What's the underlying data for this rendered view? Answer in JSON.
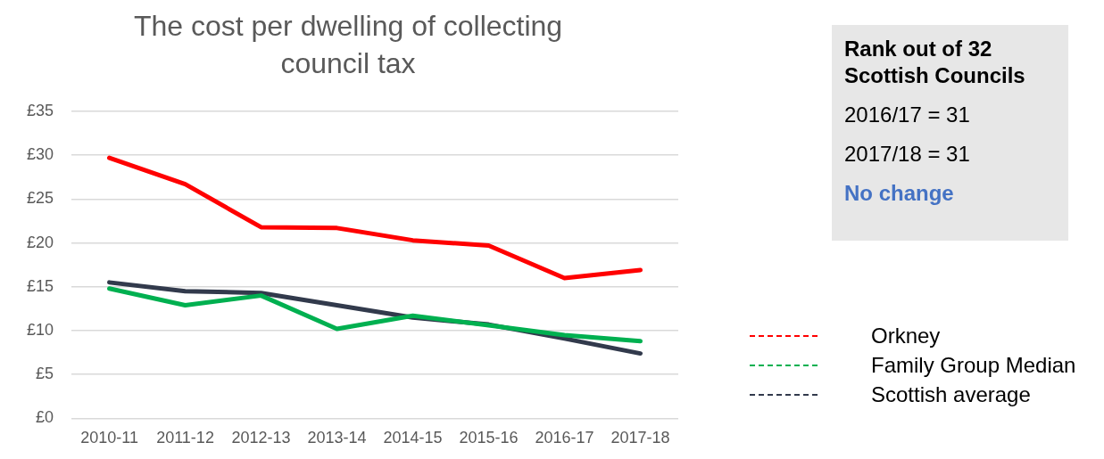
{
  "chart_data": {
    "type": "line",
    "title": "The cost per dwelling of collecting council tax",
    "categories": [
      "2010-11",
      "2011-12",
      "2012-13",
      "2013-14",
      "2014-15",
      "2015-16",
      "2016-17",
      "2017-18"
    ],
    "series": [
      {
        "name": "Orkney",
        "color": "#ff0000",
        "values": [
          29.7,
          26.7,
          21.8,
          21.7,
          20.3,
          19.7,
          16.0,
          16.9
        ]
      },
      {
        "name": "Family Group Median",
        "color": "#00b050",
        "values": [
          14.8,
          12.9,
          14.0,
          10.2,
          11.7,
          10.6,
          9.5,
          8.8
        ]
      },
      {
        "name": "Scottish average",
        "color": "#323a4c",
        "values": [
          15.5,
          14.5,
          14.3,
          12.9,
          11.5,
          10.7,
          9.1,
          7.4
        ]
      }
    ],
    "ylim": [
      0,
      35
    ],
    "yticks": [
      {
        "value": 0,
        "label": "£0"
      },
      {
        "value": 5,
        "label": "£5"
      },
      {
        "value": 10,
        "label": "£10"
      },
      {
        "value": 15,
        "label": "£15"
      },
      {
        "value": 20,
        "label": "£20"
      },
      {
        "value": 25,
        "label": "£25"
      },
      {
        "value": 30,
        "label": "£30"
      },
      {
        "value": 35,
        "label": "£35"
      }
    ],
    "grid": "y",
    "legend": "right",
    "marker": "none",
    "line_style": "solid",
    "annotations": [
      "Rank out of 32 Scottish Councils",
      "2016/17 = 31",
      "2017/18 = 31",
      "No change"
    ]
  }
}
